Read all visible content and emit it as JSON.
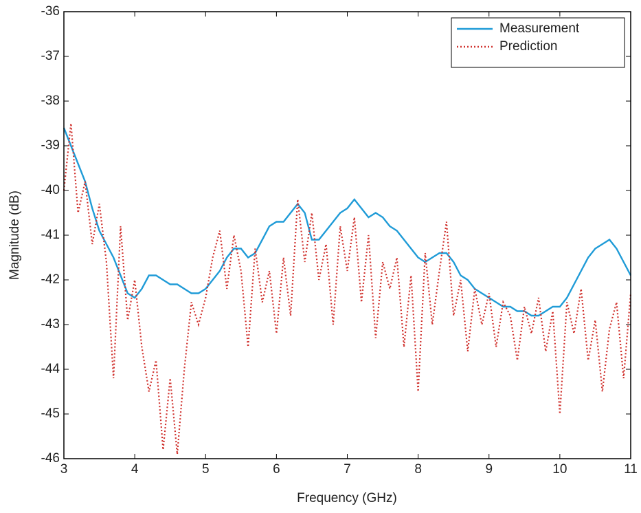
{
  "chart_data": {
    "type": "line",
    "x_label": "Frequency (GHz)",
    "y_label": "Magnitude (dB)",
    "x": [
      3,
      3.1,
      3.2,
      3.3,
      3.4,
      3.5,
      3.6,
      3.7,
      3.8,
      3.9,
      4,
      4.1,
      4.2,
      4.3,
      4.4,
      4.5,
      4.6,
      4.7,
      4.8,
      4.9,
      5,
      5.1,
      5.2,
      5.3,
      5.4,
      5.5,
      5.6,
      5.7,
      5.8,
      5.9,
      6,
      6.1,
      6.2,
      6.3,
      6.4,
      6.5,
      6.6,
      6.7,
      6.8,
      6.9,
      7,
      7.1,
      7.2,
      7.3,
      7.4,
      7.5,
      7.6,
      7.7,
      7.8,
      7.9,
      8,
      8.1,
      8.2,
      8.3,
      8.4,
      8.5,
      8.6,
      8.7,
      8.8,
      8.9,
      9,
      9.1,
      9.2,
      9.3,
      9.4,
      9.5,
      9.6,
      9.7,
      9.8,
      9.9,
      10,
      10.1,
      10.2,
      10.3,
      10.4,
      10.5,
      10.6,
      10.7,
      10.8,
      10.9,
      11
    ],
    "series": [
      {
        "name": "Measurement",
        "color": "#1f9bd7",
        "dash": "solid",
        "values": [
          -38.6,
          -39.0,
          -39.4,
          -39.8,
          -40.4,
          -40.9,
          -41.2,
          -41.5,
          -41.9,
          -42.3,
          -42.4,
          -42.2,
          -41.9,
          -41.9,
          -42.0,
          -42.1,
          -42.1,
          -42.2,
          -42.3,
          -42.3,
          -42.2,
          -42.0,
          -41.8,
          -41.5,
          -41.3,
          -41.3,
          -41.5,
          -41.4,
          -41.1,
          -40.8,
          -40.7,
          -40.7,
          -40.5,
          -40.3,
          -40.5,
          -41.1,
          -41.1,
          -40.9,
          -40.7,
          -40.5,
          -40.4,
          -40.2,
          -40.4,
          -40.6,
          -40.5,
          -40.6,
          -40.8,
          -40.9,
          -41.1,
          -41.3,
          -41.5,
          -41.6,
          -41.5,
          -41.4,
          -41.4,
          -41.6,
          -41.9,
          -42.0,
          -42.2,
          -42.3,
          -42.4,
          -42.5,
          -42.6,
          -42.6,
          -42.7,
          -42.7,
          -42.8,
          -42.8,
          -42.7,
          -42.6,
          -42.6,
          -42.4,
          -42.1,
          -41.8,
          -41.5,
          -41.3,
          -41.2,
          -41.1,
          -41.3,
          -41.6,
          -41.9
        ]
      },
      {
        "name": "Prediction",
        "color": "#d0312d",
        "dash": "dotted",
        "values": [
          -40.0,
          -38.5,
          -40.5,
          -39.8,
          -41.2,
          -40.3,
          -41.6,
          -44.2,
          -40.8,
          -42.9,
          -42.0,
          -43.5,
          -44.5,
          -43.8,
          -45.8,
          -44.2,
          -45.9,
          -44.0,
          -42.5,
          -43.0,
          -42.4,
          -41.5,
          -40.9,
          -42.2,
          -41.0,
          -41.8,
          -43.5,
          -41.3,
          -42.5,
          -41.8,
          -43.2,
          -41.5,
          -42.8,
          -40.2,
          -41.6,
          -40.5,
          -42.0,
          -41.2,
          -43.0,
          -40.8,
          -41.8,
          -40.6,
          -42.5,
          -41.0,
          -43.3,
          -41.6,
          -42.2,
          -41.5,
          -43.5,
          -41.9,
          -44.5,
          -41.4,
          -43.0,
          -41.8,
          -40.7,
          -42.8,
          -42.0,
          -43.6,
          -42.2,
          -43.0,
          -42.3,
          -43.5,
          -42.5,
          -42.8,
          -43.8,
          -42.6,
          -43.2,
          -42.4,
          -43.6,
          -42.7,
          -45.0,
          -42.5,
          -43.2,
          -42.2,
          -43.8,
          -42.9,
          -44.5,
          -43.1,
          -42.5,
          -44.2,
          -42.3
        ]
      }
    ],
    "xlim": [
      3,
      11
    ],
    "xticks": [
      3,
      4,
      5,
      6,
      7,
      8,
      9,
      10,
      11
    ],
    "ylim": [
      -46,
      -36
    ],
    "yticks": [
      -36,
      -37,
      -38,
      -39,
      -40,
      -41,
      -42,
      -43,
      -44,
      -45,
      -46
    ],
    "legend": "upper right"
  }
}
